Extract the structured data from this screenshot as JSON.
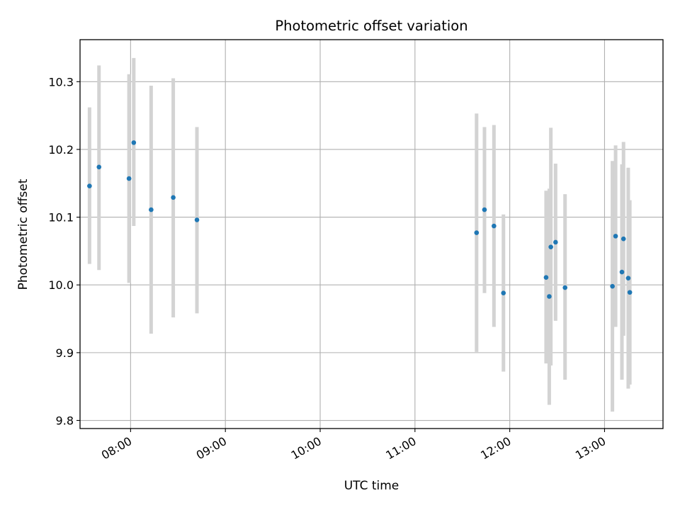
{
  "chart_data": {
    "type": "scatter",
    "title": "Photometric offset variation",
    "xlabel": "UTC time",
    "ylabel": "Photometric offset",
    "x_is_time": true,
    "xlim": [
      "07:28",
      "13:37"
    ],
    "ylim": [
      9.788,
      10.362
    ],
    "x_ticks": [
      "08:00",
      "09:00",
      "10:00",
      "11:00",
      "12:00",
      "13:00"
    ],
    "y_ticks": [
      "9.8",
      "9.9",
      "10.0",
      "10.1",
      "10.2",
      "10.3"
    ],
    "grid": true,
    "marker_color": "#1f77b4",
    "errorbar_color": "#d3d3d3",
    "series": [
      {
        "points": [
          {
            "x": "07:34",
            "y": 10.146,
            "low": 10.031,
            "high": 10.262
          },
          {
            "x": "07:40",
            "y": 10.174,
            "low": 10.022,
            "high": 10.324
          },
          {
            "x": "07:59",
            "y": 10.157,
            "low": 10.003,
            "high": 10.311
          },
          {
            "x": "08:02",
            "y": 10.21,
            "low": 10.087,
            "high": 10.335
          },
          {
            "x": "08:13",
            "y": 10.111,
            "low": 9.928,
            "high": 10.294
          },
          {
            "x": "08:27",
            "y": 10.129,
            "low": 9.952,
            "high": 10.305
          },
          {
            "x": "08:42",
            "y": 10.096,
            "low": 9.958,
            "high": 10.233
          },
          {
            "x": "11:39",
            "y": 10.077,
            "low": 9.901,
            "high": 10.253
          },
          {
            "x": "11:44",
            "y": 10.111,
            "low": 9.988,
            "high": 10.233
          },
          {
            "x": "11:50",
            "y": 10.087,
            "low": 9.938,
            "high": 10.236
          },
          {
            "x": "11:56",
            "y": 9.988,
            "low": 9.872,
            "high": 10.104
          },
          {
            "x": "12:23",
            "y": 10.011,
            "low": 9.884,
            "high": 10.139
          },
          {
            "x": "12:25",
            "y": 9.983,
            "low": 9.823,
            "high": 10.142
          },
          {
            "x": "12:26",
            "y": 10.056,
            "low": 9.881,
            "high": 10.232
          },
          {
            "x": "12:29",
            "y": 10.063,
            "low": 9.947,
            "high": 10.179
          },
          {
            "x": "12:35",
            "y": 9.996,
            "low": 9.86,
            "high": 10.134
          },
          {
            "x": "13:05",
            "y": 9.998,
            "low": 9.813,
            "high": 10.183
          },
          {
            "x": "13:07",
            "y": 10.072,
            "low": 9.938,
            "high": 10.206
          },
          {
            "x": "13:11",
            "y": 10.019,
            "low": 9.86,
            "high": 10.178
          },
          {
            "x": "13:12",
            "y": 10.068,
            "low": 9.925,
            "high": 10.211
          },
          {
            "x": "13:15",
            "y": 10.01,
            "low": 9.847,
            "high": 10.173
          },
          {
            "x": "13:16",
            "y": 9.989,
            "low": 9.853,
            "high": 10.125
          }
        ]
      }
    ]
  }
}
